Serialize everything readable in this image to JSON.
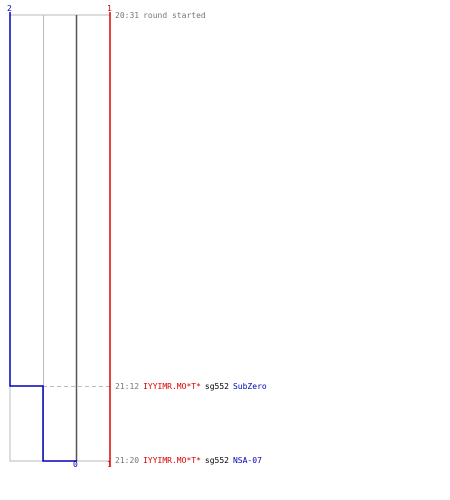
{
  "axis_labels": {
    "blue_top": "2",
    "red_top": "1",
    "blue_bottom": "0",
    "red_bottom": "1"
  },
  "colors": {
    "team_a": "#0000bb",
    "team_b": "#dd0000",
    "grid": "#bbbbbb",
    "dark_line": "#555555",
    "time": "#777777",
    "text": "#000000"
  },
  "events": [
    {
      "time": "20:31",
      "text": "round started"
    },
    {
      "time": "21:12",
      "attacker": "IYYIMR.MO*T*",
      "weapon": "sg552",
      "victim": "SubZero"
    },
    {
      "time": "21:20",
      "attacker": "IYYIMR.MO*T*",
      "weapon": "sg552",
      "victim": "NSA-07"
    }
  ]
}
